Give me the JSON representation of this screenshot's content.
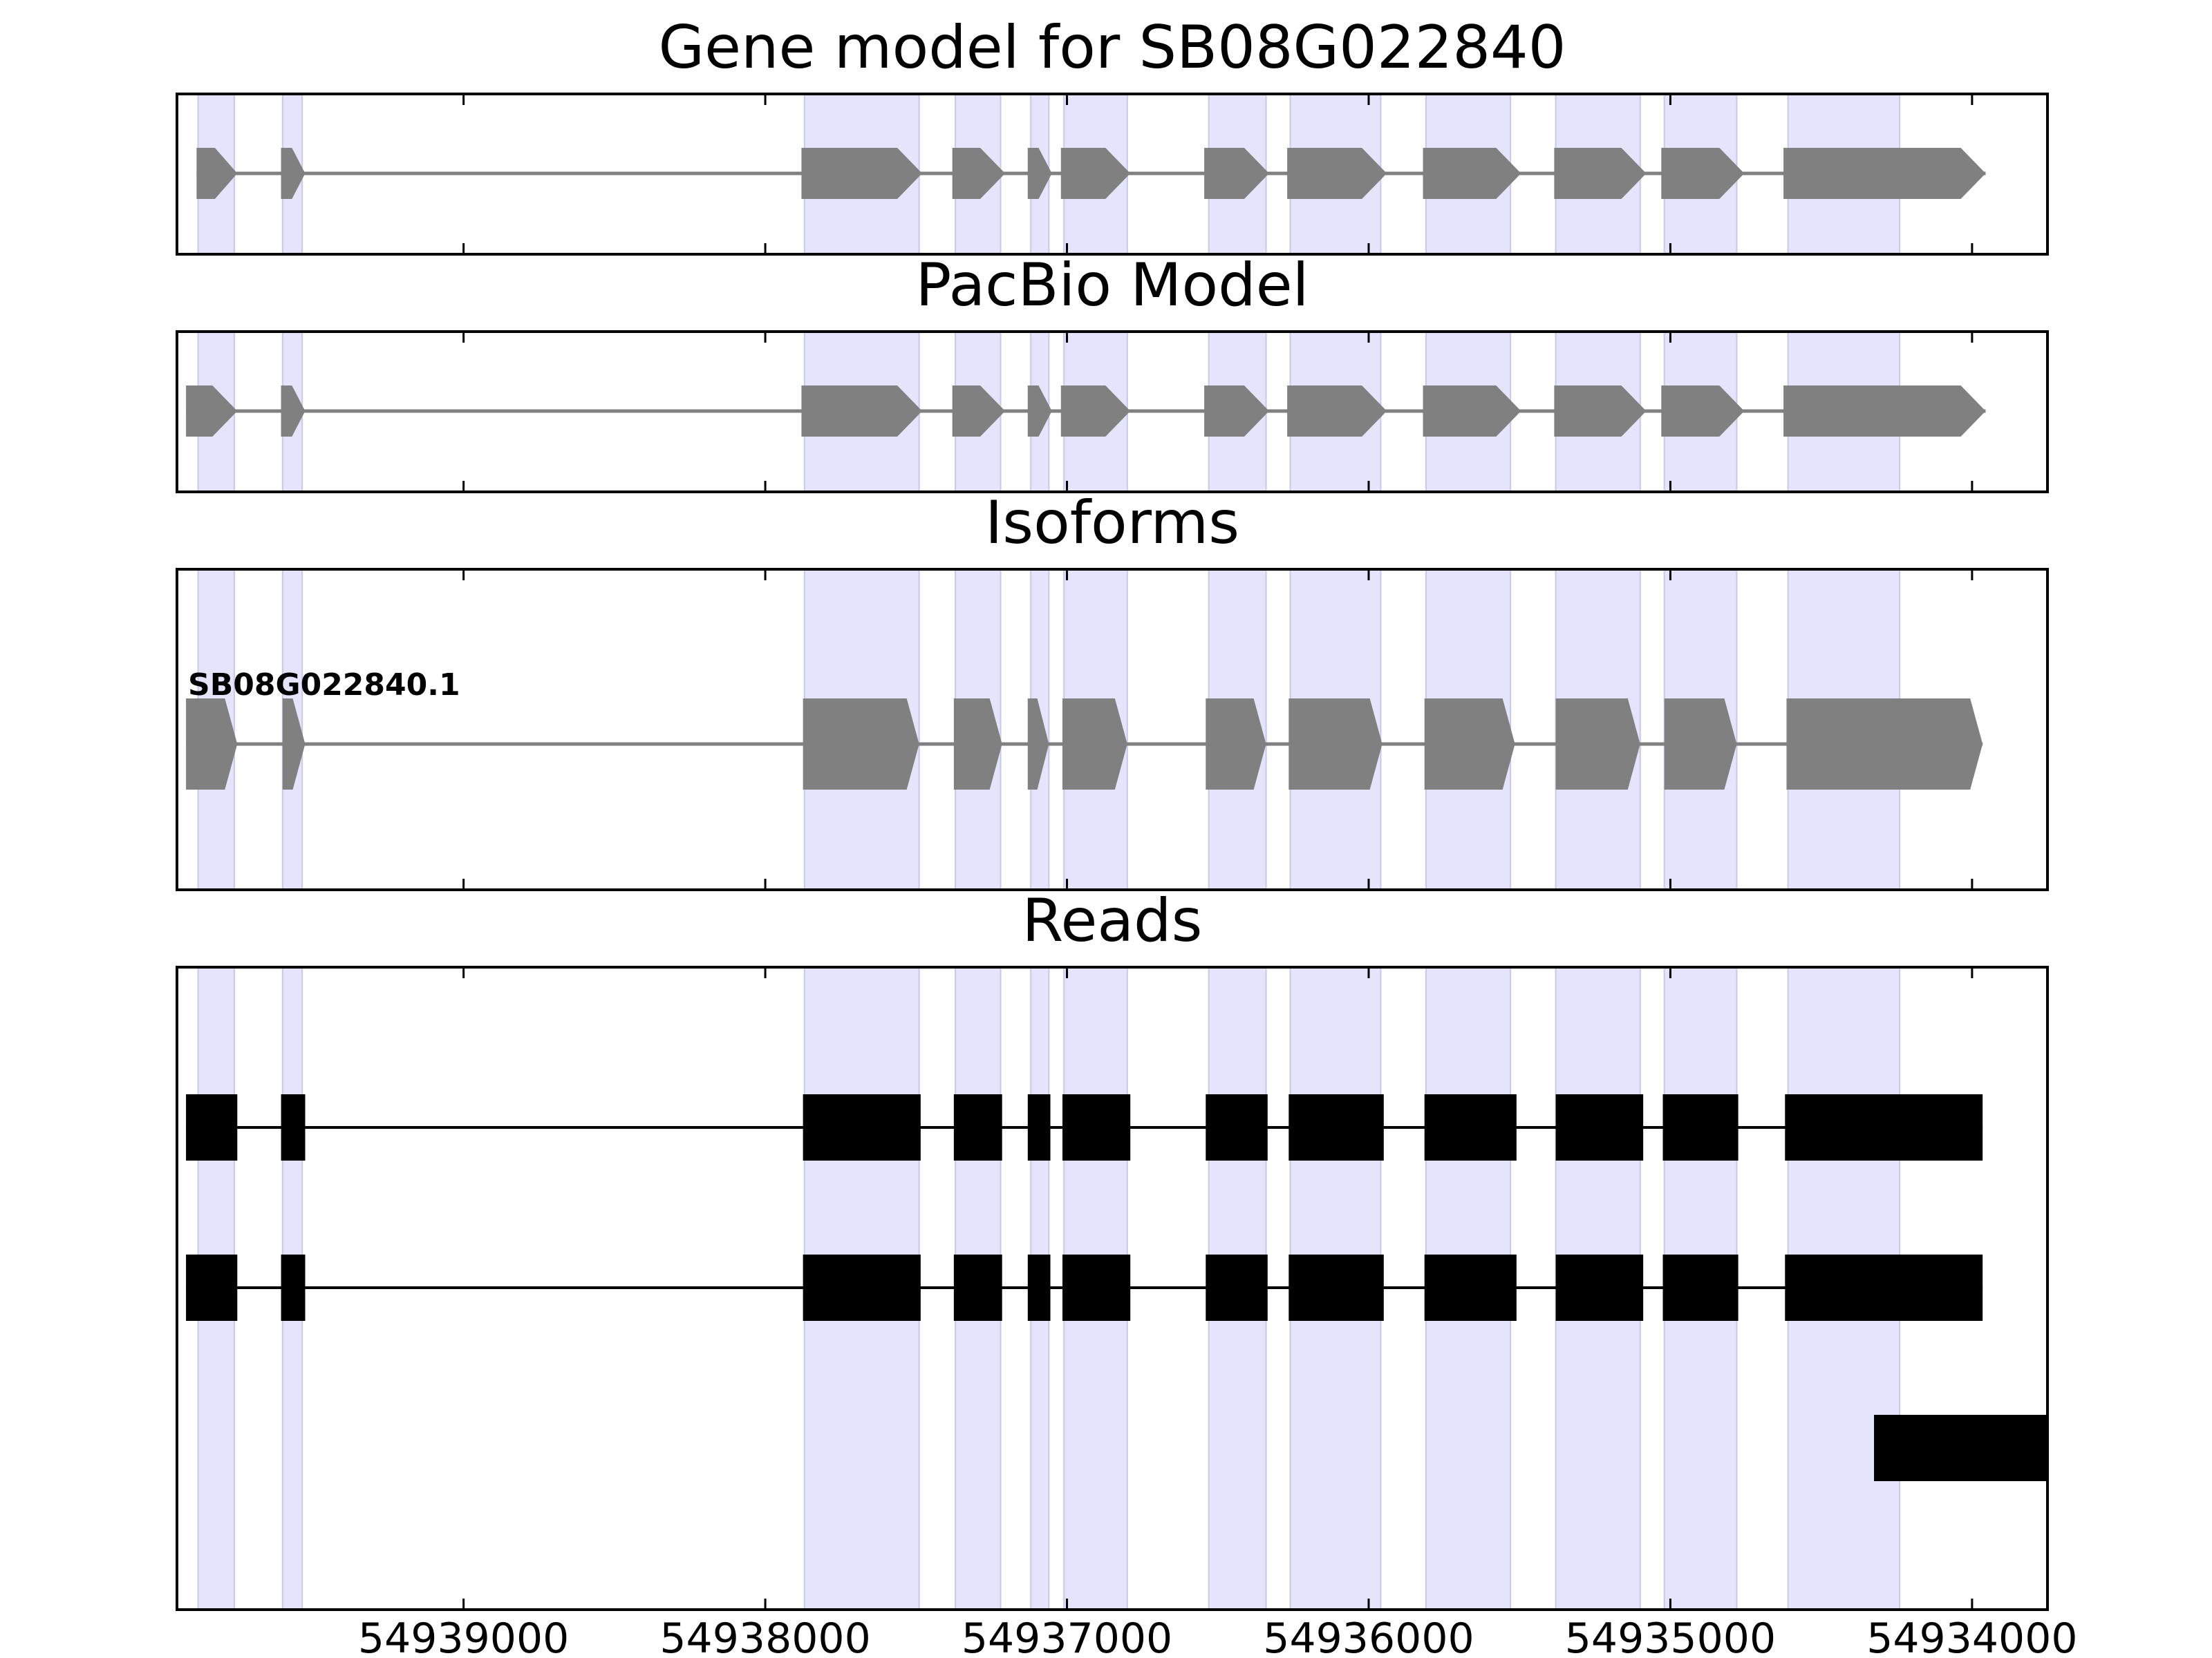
{
  "figure": {
    "colors": {
      "highlight": "#e4e4fc",
      "highlight_edge": "#c8c8ee",
      "model": "#808080",
      "read": "#000000",
      "frame": "#000000"
    }
  },
  "chart_data": {
    "type": "gene-structure",
    "x_axis": {
      "min": 54939950,
      "max": 54933750,
      "reversed": true,
      "ticks": [
        54939000,
        54938000,
        54937000,
        54936000,
        54935000,
        54934000
      ],
      "tick_labels": [
        "54939000",
        "54938000",
        "54937000",
        "54936000",
        "54935000",
        "54934000"
      ]
    },
    "highlight_regions": [
      [
        54939880,
        54939760
      ],
      [
        54939600,
        54939535
      ],
      [
        54937870,
        54937490
      ],
      [
        54937370,
        54937220
      ],
      [
        54937120,
        54937060
      ],
      [
        54937010,
        54936800
      ],
      [
        54936530,
        54936340
      ],
      [
        54936260,
        54935960
      ],
      [
        54935810,
        54935530
      ],
      [
        54935380,
        54935100
      ],
      [
        54935020,
        54934780
      ],
      [
        54934610,
        54934240
      ]
    ],
    "panels": [
      {
        "title": "Gene model for SB08G022840",
        "style": "arrow",
        "tracks": [
          {
            "label": "",
            "exons": [
              [
                54939885,
                54939750
              ],
              [
                54939605,
                54939525
              ],
              [
                54937880,
                54937480
              ],
              [
                54937380,
                54937205
              ],
              [
                54937130,
                54937050
              ],
              [
                54937020,
                54936790
              ],
              [
                54936545,
                54936330
              ],
              [
                54936270,
                54935940
              ],
              [
                54935820,
                54935495
              ],
              [
                54935385,
                54935080
              ],
              [
                54935030,
                54934755
              ],
              [
                54934625,
                54933955
              ]
            ]
          }
        ]
      },
      {
        "title": "PacBio Model",
        "style": "arrow",
        "tracks": [
          {
            "label": "",
            "exons": [
              [
                54939920,
                54939750
              ],
              [
                54939605,
                54939525
              ],
              [
                54937880,
                54937480
              ],
              [
                54937380,
                54937205
              ],
              [
                54937130,
                54937050
              ],
              [
                54937020,
                54936790
              ],
              [
                54936545,
                54936330
              ],
              [
                54936270,
                54935940
              ],
              [
                54935820,
                54935495
              ],
              [
                54935385,
                54935080
              ],
              [
                54935030,
                54934755
              ],
              [
                54934625,
                54933955
              ]
            ]
          }
        ]
      },
      {
        "title": "Isoforms",
        "style": "arrow",
        "tracks": [
          {
            "label": "SB08G022840.1",
            "exons": [
              [
                54939920,
                54939750
              ],
              [
                54939600,
                54939525
              ],
              [
                54937875,
                54937490
              ],
              [
                54937375,
                54937215
              ],
              [
                54937130,
                54937060
              ],
              [
                54937015,
                54936800
              ],
              [
                54936540,
                54936340
              ],
              [
                54936265,
                54935955
              ],
              [
                54935815,
                54935515
              ],
              [
                54935380,
                54935100
              ],
              [
                54935020,
                54934780
              ],
              [
                54934615,
                54933965
              ]
            ]
          }
        ]
      },
      {
        "title": "Reads",
        "style": "box",
        "tracks": [
          {
            "label": "",
            "exons": [
              [
                54939920,
                54939750
              ],
              [
                54939605,
                54939525
              ],
              [
                54937875,
                54937485
              ],
              [
                54937375,
                54937215
              ],
              [
                54937130,
                54937055
              ],
              [
                54937015,
                54936790
              ],
              [
                54936540,
                54936335
              ],
              [
                54936265,
                54935950
              ],
              [
                54935815,
                54935510
              ],
              [
                54935380,
                54935090
              ],
              [
                54935025,
                54934775
              ],
              [
                54934620,
                54933965
              ]
            ]
          },
          {
            "label": "",
            "exons": [
              [
                54939920,
                54939750
              ],
              [
                54939605,
                54939525
              ],
              [
                54937875,
                54937485
              ],
              [
                54937375,
                54937215
              ],
              [
                54937130,
                54937055
              ],
              [
                54937015,
                54936790
              ],
              [
                54936540,
                54936335
              ],
              [
                54936265,
                54935950
              ],
              [
                54935815,
                54935510
              ],
              [
                54935380,
                54935090
              ],
              [
                54935025,
                54934775
              ],
              [
                54934620,
                54933965
              ]
            ]
          },
          {
            "label": "",
            "exons": [
              [
                54934325,
                54933750
              ]
            ]
          }
        ]
      }
    ]
  }
}
